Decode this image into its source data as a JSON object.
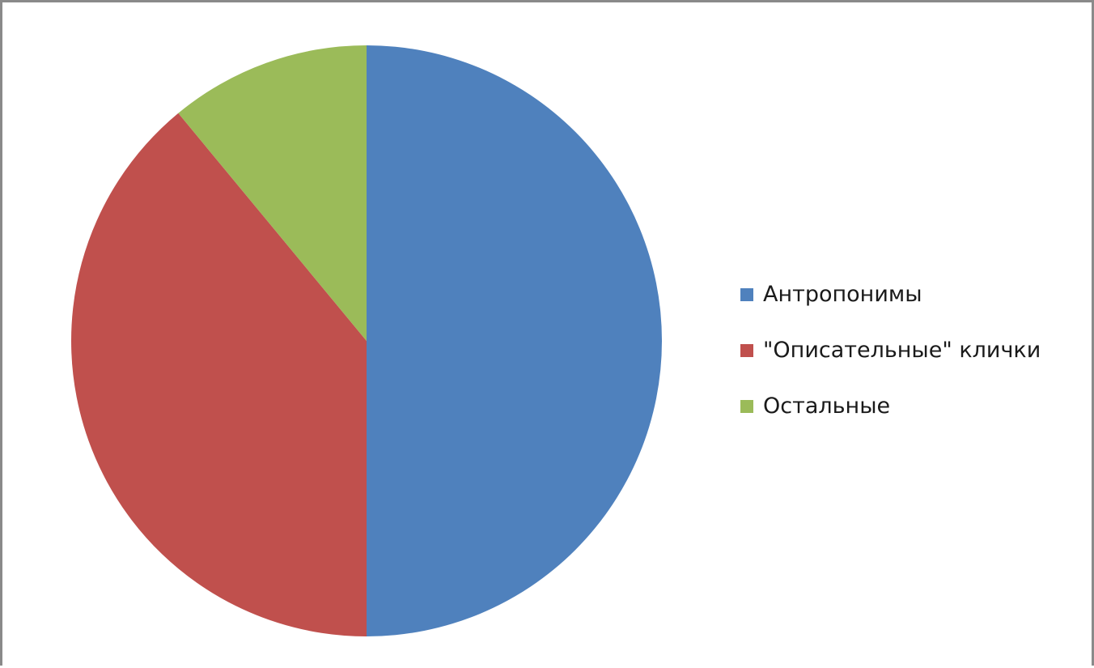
{
  "chart_data": {
    "type": "pie",
    "categories": [
      "Антропонимы",
      "\"Описательные\" клички",
      "Остальные"
    ],
    "values": [
      50,
      39,
      11
    ],
    "colors": [
      "#4f81bd",
      "#c0504d",
      "#9bbb59"
    ],
    "legend_position": "right",
    "title": ""
  }
}
